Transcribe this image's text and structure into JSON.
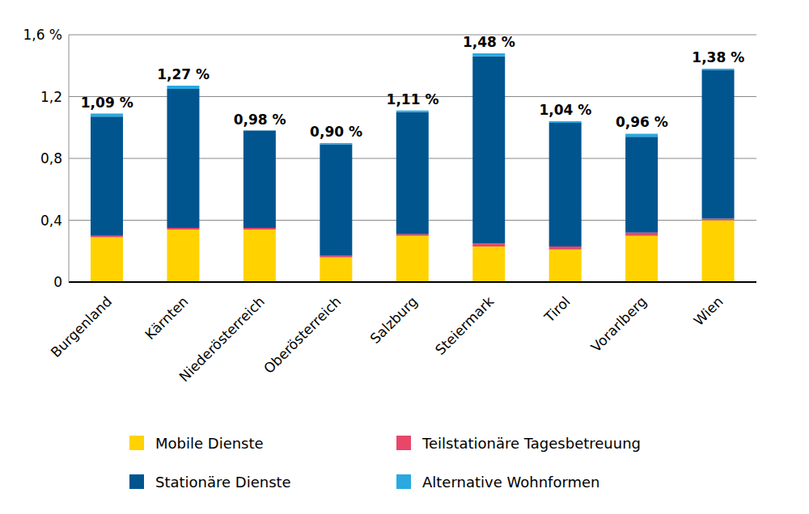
{
  "chart_data": {
    "type": "bar",
    "stacked": true,
    "grid": true,
    "categories": [
      "Burgenland",
      "Kärnten",
      "Niederösterreich",
      "Oberösterreich",
      "Salzburg",
      "Steiermark",
      "Tirol",
      "Vorarlberg",
      "Wien"
    ],
    "series": [
      {
        "name": "Mobile Dienste",
        "color": "#ffd200",
        "values": [
          0.29,
          0.34,
          0.34,
          0.16,
          0.3,
          0.23,
          0.21,
          0.3,
          0.4
        ]
      },
      {
        "name": "Teilstationäre Tagesbetreuung",
        "color": "#e8476a",
        "values": [
          0.01,
          0.01,
          0.01,
          0.01,
          0.01,
          0.02,
          0.02,
          0.02,
          0.01
        ]
      },
      {
        "name": "Stationäre Dienste",
        "color": "#00558f",
        "values": [
          0.77,
          0.9,
          0.63,
          0.72,
          0.79,
          1.21,
          0.8,
          0.62,
          0.96
        ]
      },
      {
        "name": "Alternative Wohnformen",
        "color": "#29a9e0",
        "values": [
          0.02,
          0.02,
          0.0,
          0.01,
          0.01,
          0.02,
          0.01,
          0.02,
          0.01
        ]
      }
    ],
    "annotations": [
      {
        "x": "Burgenland",
        "y": 1.09,
        "text": "1,09 %"
      },
      {
        "x": "Kärnten",
        "y": 1.27,
        "text": "1,27 %"
      },
      {
        "x": "Niederösterreich",
        "y": 0.98,
        "text": "0,98 %"
      },
      {
        "x": "Oberösterreich",
        "y": 0.9,
        "text": "0,90 %"
      },
      {
        "x": "Salzburg",
        "y": 1.11,
        "text": "1,11 %"
      },
      {
        "x": "Steiermark",
        "y": 1.48,
        "text": "1,48 %"
      },
      {
        "x": "Tirol",
        "y": 1.04,
        "text": "1,04 %"
      },
      {
        "x": "Vorarlberg",
        "y": 0.96,
        "text": "0,96 %"
      },
      {
        "x": "Wien",
        "y": 1.38,
        "text": "1,38 %"
      }
    ],
    "ylim": [
      0,
      1.6
    ],
    "yticks": [
      0,
      {
        "value": 0.4,
        "label": "0,4"
      },
      {
        "value": 0.8,
        "label": "0,8"
      },
      {
        "value": 1.2,
        "label": "1,2"
      },
      {
        "value": 1.6,
        "label": "1,6 %"
      }
    ],
    "legend": "bottom"
  }
}
